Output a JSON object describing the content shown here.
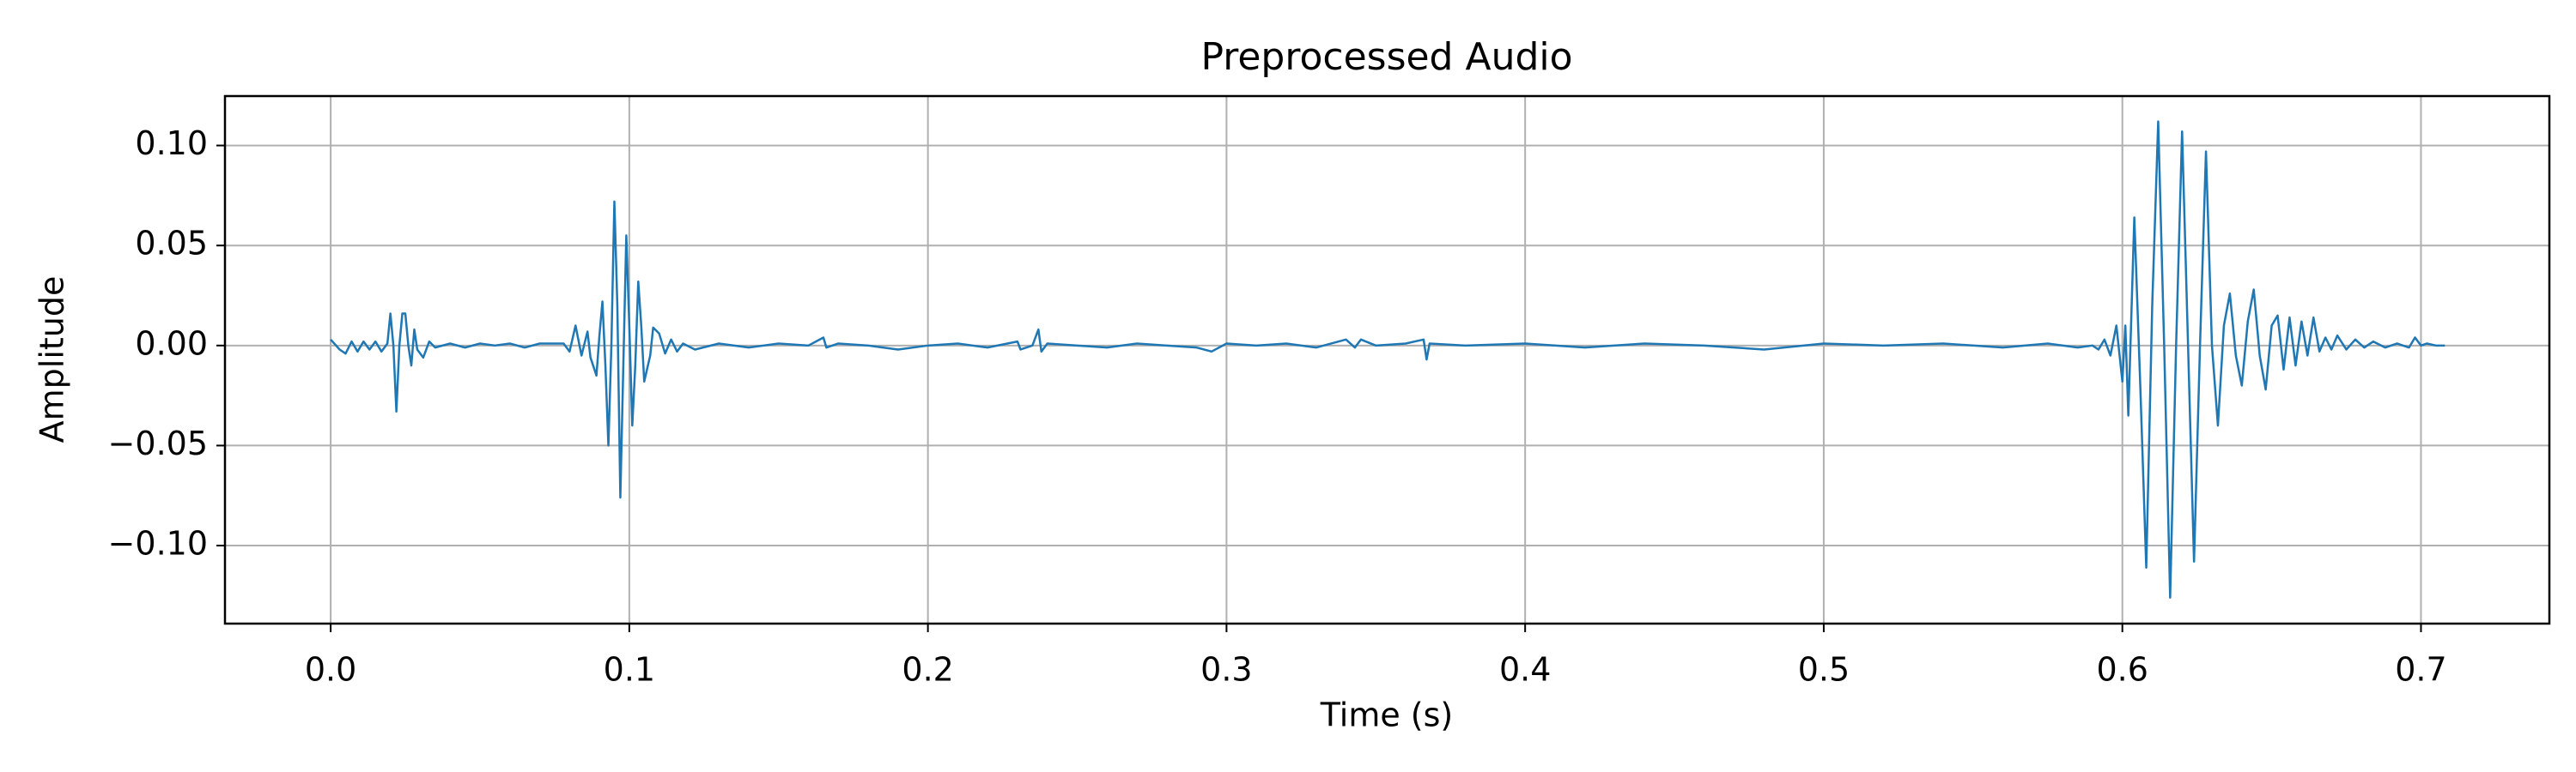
{
  "chart_data": {
    "type": "line",
    "title": "Preprocessed Audio",
    "x_label": "Time (s)",
    "y_label": "Amplitude",
    "x": [
      0.0,
      0.003,
      0.005,
      0.007,
      0.009,
      0.011,
      0.013,
      0.015,
      0.017,
      0.019,
      0.02,
      0.021,
      0.022,
      0.023,
      0.024,
      0.025,
      0.026,
      0.027,
      0.028,
      0.029,
      0.031,
      0.033,
      0.035,
      0.04,
      0.045,
      0.05,
      0.055,
      0.06,
      0.065,
      0.07,
      0.075,
      0.078,
      0.08,
      0.082,
      0.084,
      0.086,
      0.087,
      0.089,
      0.09,
      0.091,
      0.092,
      0.093,
      0.094,
      0.095,
      0.096,
      0.097,
      0.098,
      0.099,
      0.1,
      0.101,
      0.102,
      0.103,
      0.104,
      0.105,
      0.107,
      0.108,
      0.11,
      0.112,
      0.114,
      0.116,
      0.118,
      0.122,
      0.13,
      0.14,
      0.15,
      0.16,
      0.165,
      0.166,
      0.17,
      0.18,
      0.19,
      0.2,
      0.21,
      0.22,
      0.23,
      0.231,
      0.235,
      0.237,
      0.238,
      0.24,
      0.25,
      0.26,
      0.27,
      0.28,
      0.29,
      0.295,
      0.3,
      0.31,
      0.32,
      0.33,
      0.34,
      0.343,
      0.345,
      0.35,
      0.36,
      0.366,
      0.367,
      0.368,
      0.38,
      0.4,
      0.42,
      0.44,
      0.46,
      0.48,
      0.5,
      0.52,
      0.54,
      0.56,
      0.575,
      0.585,
      0.59,
      0.592,
      0.594,
      0.596,
      0.598,
      0.6,
      0.601,
      0.602,
      0.604,
      0.606,
      0.608,
      0.61,
      0.612,
      0.614,
      0.616,
      0.618,
      0.62,
      0.622,
      0.624,
      0.626,
      0.628,
      0.63,
      0.632,
      0.634,
      0.636,
      0.638,
      0.64,
      0.642,
      0.644,
      0.646,
      0.648,
      0.65,
      0.652,
      0.654,
      0.656,
      0.658,
      0.66,
      0.662,
      0.664,
      0.666,
      0.668,
      0.67,
      0.672,
      0.675,
      0.678,
      0.681,
      0.684,
      0.688,
      0.692,
      0.696,
      0.698,
      0.7,
      0.702,
      0.705,
      0.708
    ],
    "series": [
      {
        "color": "#1f77b4",
        "values": [
          0.003,
          -0.002,
          -0.004,
          0.002,
          -0.003,
          0.002,
          -0.002,
          0.002,
          -0.003,
          0.001,
          0.016,
          0.0,
          -0.033,
          0.0,
          0.016,
          0.016,
          0.0,
          -0.01,
          0.008,
          -0.002,
          -0.006,
          0.002,
          -0.001,
          0.001,
          -0.001,
          0.001,
          0.0,
          0.001,
          -0.001,
          0.001,
          0.001,
          0.001,
          -0.003,
          0.01,
          -0.005,
          0.007,
          -0.006,
          -0.015,
          0.005,
          0.022,
          -0.01,
          -0.05,
          0.0,
          0.072,
          0.02,
          -0.076,
          -0.01,
          0.055,
          0.01,
          -0.04,
          -0.01,
          0.032,
          0.01,
          -0.018,
          -0.005,
          0.009,
          0.006,
          -0.004,
          0.003,
          -0.003,
          0.001,
          -0.002,
          0.001,
          -0.001,
          0.001,
          0.0,
          0.004,
          -0.001,
          0.001,
          0.0,
          -0.002,
          0.0,
          0.001,
          -0.001,
          0.002,
          -0.002,
          0.0,
          0.008,
          -0.003,
          0.001,
          0.0,
          -0.001,
          0.001,
          0.0,
          -0.001,
          -0.003,
          0.001,
          0.0,
          0.001,
          -0.001,
          0.003,
          -0.001,
          0.003,
          0.0,
          0.001,
          0.003,
          -0.007,
          0.001,
          0.0,
          0.001,
          -0.001,
          0.001,
          0.0,
          -0.002,
          0.001,
          0.0,
          0.001,
          -0.001,
          0.001,
          -0.001,
          0.0,
          -0.002,
          0.003,
          -0.005,
          0.01,
          -0.018,
          0.01,
          -0.035,
          0.064,
          -0.02,
          -0.111,
          0.02,
          0.112,
          0.0,
          -0.126,
          0.0,
          0.107,
          0.0,
          -0.108,
          0.0,
          0.097,
          0.0,
          -0.04,
          0.01,
          0.026,
          -0.005,
          -0.02,
          0.012,
          0.028,
          -0.005,
          -0.022,
          0.01,
          0.015,
          -0.012,
          0.014,
          -0.01,
          0.012,
          -0.005,
          0.014,
          -0.003,
          0.004,
          -0.002,
          0.005,
          -0.002,
          0.003,
          -0.001,
          0.002,
          -0.001,
          0.001,
          -0.001,
          0.004,
          0.0,
          0.001,
          0.0,
          0.0
        ]
      }
    ],
    "xlim": [
      -0.0354,
      0.743
    ],
    "ylim": [
      -0.139,
      0.1247
    ],
    "xticks": [
      {
        "value": 0,
        "label": "0.0"
      },
      0.1,
      0.2,
      0.3,
      0.4,
      0.5,
      0.6,
      0.7
    ],
    "yticks": [
      {
        "value": -0.1,
        "label": "−0.10"
      },
      {
        "value": -0.05,
        "label": "−0.05"
      },
      {
        "value": 0,
        "label": "0.00"
      },
      {
        "value": 0.05,
        "label": "0.05"
      },
      {
        "value": 0.1,
        "label": "0.10"
      }
    ],
    "grid": true
  }
}
